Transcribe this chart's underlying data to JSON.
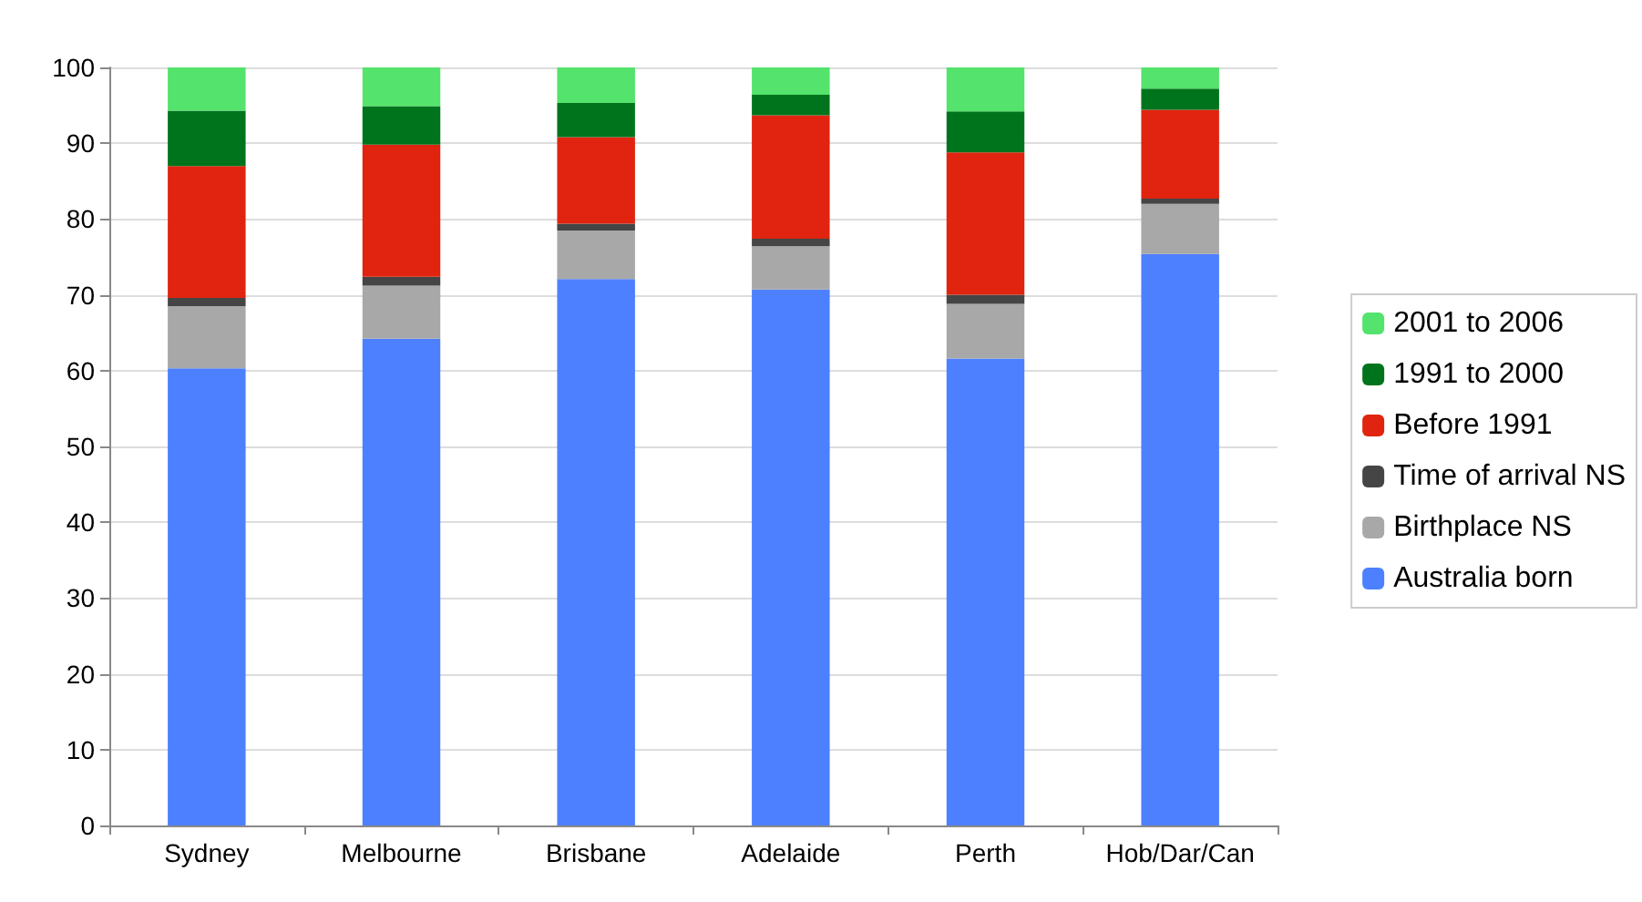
{
  "chart_data": {
    "type": "bar",
    "stacked": true,
    "categories": [
      "Sydney",
      "Melbourne",
      "Brisbane",
      "Adelaide",
      "Perth",
      "Hob/Dar/Can"
    ],
    "series": [
      {
        "name": "Australia born",
        "color": "#4d80ff",
        "values": [
          60.3,
          64.2,
          72.1,
          70.7,
          61.6,
          75.4
        ]
      },
      {
        "name": "Birthplace NS",
        "color": "#a8a8a8",
        "values": [
          8.2,
          7.0,
          6.4,
          5.7,
          7.2,
          6.6
        ]
      },
      {
        "name": "Time of arrival NS",
        "color": "#454545",
        "values": [
          1.1,
          1.2,
          0.9,
          1.0,
          1.2,
          0.7
        ]
      },
      {
        "name": "Before 1991",
        "color": "#e0240f",
        "values": [
          17.4,
          17.4,
          11.4,
          16.3,
          18.8,
          11.7
        ]
      },
      {
        "name": "1991 to 2000",
        "color": "#00741c",
        "values": [
          7.3,
          5.1,
          4.5,
          2.7,
          5.4,
          2.8
        ]
      },
      {
        "name": "2001 to 2006",
        "color": "#54e36c",
        "values": [
          5.7,
          5.1,
          4.7,
          3.6,
          5.8,
          2.8
        ]
      }
    ],
    "ylim": [
      0,
      100
    ],
    "yticks": [
      0,
      10,
      20,
      30,
      40,
      50,
      60,
      70,
      80,
      90,
      100
    ],
    "grid": "y",
    "legend": "right"
  }
}
